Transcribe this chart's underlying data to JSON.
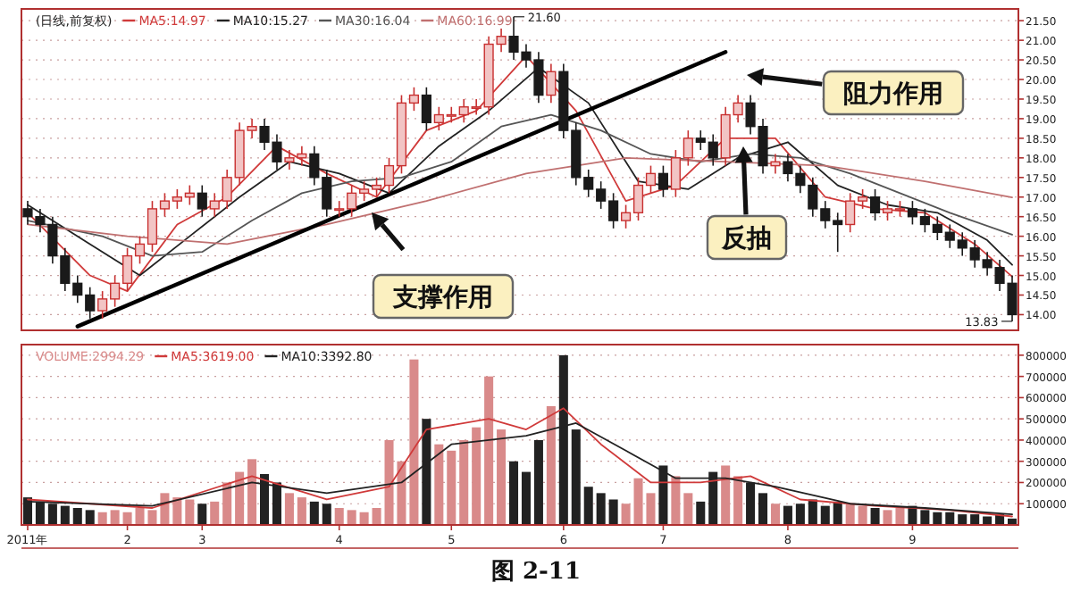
{
  "chart_data": [
    {
      "type": "candlestick",
      "title": "(日线,前复权)",
      "legend": "top left",
      "grid": "y",
      "tick_labels": "y",
      "categories": [
        null,
        null,
        null,
        null,
        null,
        null,
        null,
        null,
        null,
        null,
        null,
        null,
        null,
        null,
        null,
        null,
        null,
        null,
        null,
        null,
        null,
        null,
        null,
        null,
        null,
        null,
        null,
        null,
        null,
        null,
        null,
        null,
        null,
        null,
        null,
        null,
        null,
        null,
        null,
        null,
        null,
        null,
        null,
        null,
        null,
        null,
        null,
        null,
        null,
        null,
        null,
        null,
        null,
        null,
        null,
        null,
        null,
        null,
        null,
        null,
        null,
        null,
        null,
        null,
        null,
        null,
        null,
        null,
        null,
        null,
        null,
        null,
        null,
        null,
        null,
        null,
        null,
        null,
        null,
        null
      ],
      "ohlc": [
        [
          16.7,
          16.9,
          16.3,
          16.5
        ],
        [
          16.5,
          16.7,
          16.1,
          16.3
        ],
        [
          16.3,
          16.5,
          15.3,
          15.5
        ],
        [
          15.5,
          15.7,
          14.6,
          14.8
        ],
        [
          14.8,
          15.0,
          14.3,
          14.5
        ],
        [
          14.5,
          14.7,
          13.9,
          14.1
        ],
        [
          14.1,
          14.6,
          13.9,
          14.4
        ],
        [
          14.4,
          15.0,
          14.2,
          14.8
        ],
        [
          14.8,
          15.7,
          14.6,
          15.5
        ],
        [
          15.5,
          16.0,
          15.3,
          15.8
        ],
        [
          15.8,
          16.9,
          15.6,
          16.7
        ],
        [
          16.7,
          17.1,
          16.5,
          16.9
        ],
        [
          16.9,
          17.2,
          16.7,
          17.0
        ],
        [
          17.0,
          17.3,
          16.8,
          17.1
        ],
        [
          17.1,
          17.3,
          16.5,
          16.7
        ],
        [
          16.7,
          17.1,
          16.5,
          16.9
        ],
        [
          16.9,
          17.7,
          16.7,
          17.5
        ],
        [
          17.5,
          18.9,
          17.3,
          18.7
        ],
        [
          18.7,
          19.0,
          18.5,
          18.8
        ],
        [
          18.8,
          19.0,
          18.2,
          18.4
        ],
        [
          18.4,
          18.6,
          17.7,
          17.9
        ],
        [
          17.9,
          18.2,
          17.7,
          18.0
        ],
        [
          18.0,
          18.3,
          17.8,
          18.1
        ],
        [
          18.1,
          18.3,
          17.3,
          17.5
        ],
        [
          17.5,
          17.7,
          16.5,
          16.7
        ],
        [
          16.7,
          16.9,
          16.5,
          16.7
        ],
        [
          16.7,
          17.3,
          16.5,
          17.1
        ],
        [
          17.1,
          17.4,
          16.9,
          17.2
        ],
        [
          17.2,
          17.5,
          17.0,
          17.3
        ],
        [
          17.3,
          18.0,
          17.1,
          17.8
        ],
        [
          17.8,
          19.6,
          17.6,
          19.4
        ],
        [
          19.4,
          19.8,
          19.2,
          19.6
        ],
        [
          19.6,
          19.8,
          18.7,
          18.9
        ],
        [
          18.9,
          19.3,
          18.7,
          19.1
        ],
        [
          19.1,
          19.3,
          18.9,
          19.1
        ],
        [
          19.1,
          19.5,
          18.9,
          19.3
        ],
        [
          19.3,
          19.5,
          19.1,
          19.3
        ],
        [
          19.3,
          21.1,
          19.1,
          20.9
        ],
        [
          20.9,
          21.3,
          20.7,
          21.1
        ],
        [
          21.1,
          21.6,
          20.5,
          20.7
        ],
        [
          20.7,
          20.9,
          20.3,
          20.5
        ],
        [
          20.5,
          20.7,
          19.4,
          19.6
        ],
        [
          19.6,
          20.4,
          19.4,
          20.2
        ],
        [
          20.2,
          20.4,
          18.5,
          18.7
        ],
        [
          18.7,
          18.9,
          17.3,
          17.5
        ],
        [
          17.5,
          17.7,
          17.0,
          17.2
        ],
        [
          17.2,
          17.4,
          16.7,
          16.9
        ],
        [
          16.9,
          17.1,
          16.2,
          16.4
        ],
        [
          16.4,
          16.8,
          16.2,
          16.6
        ],
        [
          16.6,
          17.5,
          16.4,
          17.3
        ],
        [
          17.3,
          17.8,
          17.1,
          17.6
        ],
        [
          17.6,
          17.8,
          17.0,
          17.2
        ],
        [
          17.2,
          18.2,
          17.0,
          18.0
        ],
        [
          18.0,
          18.7,
          17.8,
          18.5
        ],
        [
          18.5,
          18.7,
          18.2,
          18.4
        ],
        [
          18.4,
          18.6,
          17.8,
          18.0
        ],
        [
          18.0,
          19.3,
          17.8,
          19.1
        ],
        [
          19.1,
          19.6,
          18.9,
          19.4
        ],
        [
          19.4,
          19.6,
          18.6,
          18.8
        ],
        [
          18.8,
          19.0,
          17.6,
          17.8
        ],
        [
          17.8,
          18.1,
          17.6,
          17.9
        ],
        [
          17.9,
          18.1,
          17.4,
          17.6
        ],
        [
          17.6,
          17.8,
          17.1,
          17.3
        ],
        [
          17.3,
          17.5,
          16.5,
          16.7
        ],
        [
          16.7,
          16.9,
          16.2,
          16.4
        ],
        [
          16.4,
          16.6,
          15.6,
          16.3
        ],
        [
          16.3,
          17.1,
          16.1,
          16.9
        ],
        [
          16.9,
          17.2,
          16.7,
          17.0
        ],
        [
          17.0,
          17.2,
          16.4,
          16.6
        ],
        [
          16.6,
          16.9,
          16.4,
          16.7
        ],
        [
          16.7,
          16.9,
          16.5,
          16.7
        ],
        [
          16.7,
          16.9,
          16.3,
          16.5
        ],
        [
          16.5,
          16.7,
          16.1,
          16.3
        ],
        [
          16.3,
          16.5,
          15.9,
          16.1
        ],
        [
          16.1,
          16.3,
          15.7,
          15.9
        ],
        [
          15.9,
          16.1,
          15.5,
          15.7
        ],
        [
          15.7,
          15.9,
          15.2,
          15.4
        ],
        [
          15.4,
          15.6,
          15.0,
          15.2
        ],
        [
          15.2,
          15.4,
          14.6,
          14.8
        ],
        [
          14.8,
          15.0,
          13.83,
          14.0
        ]
      ],
      "series": [
        {
          "name": "MA5:14.97",
          "type": "line",
          "color": "#d03a3a",
          "values": [
            16.6,
            null,
            null,
            null,
            null,
            15.0,
            null,
            null,
            14.6,
            null,
            null,
            null,
            16.3,
            null,
            null,
            null,
            17.0,
            null,
            null,
            null,
            18.3,
            null,
            null,
            null,
            17.6,
            null,
            null,
            null,
            17.0,
            null,
            null,
            null,
            18.7,
            null,
            null,
            null,
            19.2,
            null,
            null,
            null,
            20.6,
            null,
            null,
            null,
            19.2,
            null,
            null,
            null,
            16.9,
            null,
            null,
            null,
            17.3,
            null,
            null,
            null,
            18.5,
            null,
            null,
            null,
            18.5,
            null,
            null,
            null,
            17.0,
            null,
            null,
            null,
            16.7,
            null,
            null,
            null,
            16.6,
            null,
            null,
            null,
            15.8,
            null,
            null,
            14.97
          ]
        },
        {
          "name": "MA10:15.27",
          "type": "line",
          "color": "#222222",
          "values": [
            16.8,
            null,
            null,
            null,
            null,
            15.8,
            null,
            null,
            null,
            15.0,
            null,
            null,
            null,
            16.0,
            null,
            null,
            null,
            17.0,
            null,
            null,
            null,
            17.9,
            null,
            null,
            null,
            17.6,
            null,
            null,
            null,
            17.1,
            null,
            null,
            null,
            18.3,
            null,
            null,
            null,
            19.2,
            null,
            null,
            null,
            20.3,
            null,
            null,
            null,
            19.4,
            null,
            null,
            null,
            17.4,
            null,
            null,
            null,
            17.2,
            null,
            null,
            null,
            18.0,
            null,
            null,
            null,
            18.4,
            null,
            null,
            null,
            17.3,
            null,
            null,
            null,
            16.8,
            null,
            null,
            null,
            16.6,
            null,
            null,
            null,
            15.9,
            null,
            15.27
          ]
        },
        {
          "name": "MA30:16.04",
          "type": "line",
          "color": "#555555",
          "values": [
            16.4,
            null,
            null,
            null,
            null,
            null,
            16.0,
            null,
            null,
            null,
            15.5,
            null,
            null,
            null,
            15.6,
            null,
            null,
            null,
            16.4,
            null,
            null,
            null,
            17.1,
            null,
            null,
            null,
            17.4,
            null,
            null,
            null,
            17.5,
            null,
            null,
            null,
            17.9,
            null,
            null,
            null,
            18.8,
            null,
            null,
            null,
            19.1,
            null,
            null,
            null,
            18.7,
            null,
            null,
            null,
            18.1,
            null,
            null,
            null,
            17.9,
            null,
            null,
            null,
            18.1,
            null,
            null,
            null,
            18.0,
            null,
            null,
            null,
            17.6,
            null,
            null,
            null,
            17.1,
            null,
            null,
            null,
            16.6,
            null,
            null,
            null,
            null,
            16.04
          ]
        },
        {
          "name": "MA60:16.99",
          "type": "line",
          "color": "#c07070",
          "values": [
            16.3,
            null,
            null,
            null,
            null,
            null,
            null,
            null,
            16.0,
            null,
            null,
            null,
            null,
            null,
            null,
            null,
            15.8,
            null,
            null,
            null,
            null,
            null,
            null,
            null,
            16.3,
            null,
            null,
            null,
            null,
            null,
            null,
            null,
            16.9,
            null,
            null,
            null,
            null,
            null,
            null,
            null,
            17.6,
            null,
            null,
            null,
            null,
            null,
            null,
            null,
            18.0,
            null,
            null,
            null,
            null,
            null,
            null,
            null,
            17.9,
            null,
            null,
            null,
            null,
            null,
            null,
            null,
            17.8,
            null,
            null,
            null,
            null,
            null,
            null,
            null,
            17.4,
            null,
            null,
            null,
            null,
            null,
            null,
            16.99
          ]
        },
        {
          "type": "line",
          "color": "#000000",
          "values": [
            null,
            null,
            null,
            null,
            13.7,
            null,
            null,
            null,
            null,
            null,
            null,
            null,
            null,
            null,
            null,
            null,
            null,
            null,
            null,
            null,
            null,
            null,
            null,
            null,
            null,
            null,
            null,
            null,
            null,
            null,
            null,
            null,
            null,
            null,
            null,
            null,
            null,
            null,
            null,
            null,
            null,
            null,
            null,
            null,
            null,
            null,
            null,
            null,
            null,
            null,
            null,
            null,
            null,
            null,
            null,
            null,
            20.7,
            null,
            null,
            null,
            null,
            null,
            null,
            null,
            null,
            null,
            null,
            null,
            null,
            null,
            null,
            null,
            null,
            null,
            null,
            null,
            null,
            null,
            null,
            null
          ]
        }
      ],
      "ylim": [
        13.6,
        21.8
      ],
      "yticks": [
        {
          "value": 14,
          "label": "14.00"
        },
        {
          "value": 14.5,
          "label": "14.50"
        },
        {
          "value": 15,
          "label": "15.00"
        },
        {
          "value": 15.5,
          "label": "15.50"
        },
        {
          "value": 16,
          "label": "16.00"
        },
        {
          "value": 16.5,
          "label": "16.50"
        },
        {
          "value": 17,
          "label": "17.00"
        },
        {
          "value": 17.5,
          "label": "17.50"
        },
        {
          "value": 18,
          "label": "18.00"
        },
        {
          "value": 18.5,
          "label": "18.50"
        },
        {
          "value": 19,
          "label": "19.00"
        },
        {
          "value": 19.5,
          "label": "19.50"
        },
        {
          "value": 20,
          "label": "20.00"
        },
        {
          "value": 20.5,
          "label": "20.50"
        },
        {
          "value": 21,
          "label": "21.00"
        },
        {
          "value": 21.5,
          "label": "21.50"
        }
      ],
      "annotations": [
        "21.60",
        "13.83",
        "支撑作用",
        "阻力作用",
        "反抽"
      ]
    },
    {
      "type": "bar",
      "legend": "top left",
      "grid": "y",
      "categories": [
        "2011年",
        null,
        null,
        null,
        null,
        null,
        null,
        null,
        "2",
        null,
        null,
        null,
        null,
        null,
        "3",
        null,
        null,
        null,
        null,
        null,
        null,
        null,
        null,
        null,
        null,
        "4",
        null,
        null,
        null,
        null,
        null,
        null,
        null,
        null,
        "5",
        null,
        null,
        null,
        null,
        null,
        null,
        null,
        null,
        "6",
        null,
        null,
        null,
        null,
        null,
        null,
        null,
        "7",
        null,
        null,
        null,
        null,
        null,
        null,
        null,
        null,
        null,
        "8",
        null,
        null,
        null,
        null,
        null,
        null,
        null,
        null,
        null,
        "9",
        null,
        null,
        null,
        null,
        null,
        null,
        null,
        null
      ],
      "series": [
        {
          "name": "VOLUME:2994.29",
          "type": "bar",
          "color": "#d98a8a",
          "values": [
            130000,
            110000,
            100000,
            90000,
            80000,
            70000,
            60000,
            70000,
            60000,
            80000,
            70000,
            150000,
            130000,
            120000,
            100000,
            110000,
            200000,
            250000,
            310000,
            240000,
            200000,
            150000,
            130000,
            110000,
            100000,
            80000,
            70000,
            60000,
            80000,
            400000,
            300000,
            780000,
            500000,
            380000,
            350000,
            400000,
            460000,
            700000,
            450000,
            300000,
            250000,
            400000,
            560000,
            800000,
            450000,
            180000,
            150000,
            120000,
            100000,
            220000,
            150000,
            280000,
            230000,
            150000,
            110000,
            250000,
            280000,
            230000,
            200000,
            150000,
            100000,
            90000,
            100000,
            120000,
            90000,
            110000,
            100000,
            90000,
            80000,
            70000,
            80000,
            90000,
            70000,
            60000,
            60000,
            50000,
            50000,
            40000,
            50000,
            30000
          ],
          "colors": [
            "#222222",
            "#222222",
            "#222222",
            "#222222",
            "#222222",
            "#222222",
            "#d98a8a",
            "#d98a8a",
            "#d98a8a",
            "#d98a8a",
            "#d98a8a",
            "#d98a8a",
            "#d98a8a",
            "#d98a8a",
            "#222222",
            "#d98a8a",
            "#d98a8a",
            "#d98a8a",
            "#d98a8a",
            "#222222",
            "#222222",
            "#d98a8a",
            "#d98a8a",
            "#222222",
            "#222222",
            "#d98a8a",
            "#d98a8a",
            "#d98a8a",
            "#d98a8a",
            "#d98a8a",
            "#d98a8a",
            "#d98a8a",
            "#222222",
            "#d98a8a",
            "#d98a8a",
            "#d98a8a",
            "#d98a8a",
            "#d98a8a",
            "#d98a8a",
            "#222222",
            "#222222",
            "#222222",
            "#d98a8a",
            "#222222",
            "#222222",
            "#222222",
            "#222222",
            "#222222",
            "#d98a8a",
            "#d98a8a",
            "#d98a8a",
            "#222222",
            "#d98a8a",
            "#d98a8a",
            "#222222",
            "#222222",
            "#d98a8a",
            "#d98a8a",
            "#222222",
            "#222222",
            "#d98a8a",
            "#222222",
            "#222222",
            "#222222",
            "#222222",
            "#222222",
            "#d98a8a",
            "#d98a8a",
            "#222222",
            "#d98a8a",
            "#d98a8a",
            "#222222",
            "#222222",
            "#222222",
            "#222222",
            "#222222",
            "#222222",
            "#222222",
            "#222222",
            "#222222"
          ]
        },
        {
          "name": "MA5:3619.00",
          "type": "line",
          "color": "#d03a3a",
          "values": [
            120000,
            null,
            null,
            null,
            null,
            null,
            null,
            null,
            null,
            null,
            80000,
            null,
            null,
            null,
            null,
            null,
            null,
            null,
            230000,
            null,
            null,
            null,
            null,
            null,
            120000,
            null,
            null,
            null,
            null,
            180000,
            null,
            null,
            450000,
            null,
            null,
            null,
            null,
            500000,
            null,
            null,
            450000,
            null,
            null,
            550000,
            null,
            null,
            380000,
            null,
            null,
            null,
            200000,
            null,
            null,
            null,
            200000,
            null,
            null,
            null,
            230000,
            null,
            null,
            null,
            120000,
            null,
            null,
            null,
            null,
            null,
            90000,
            null,
            null,
            null,
            null,
            null,
            70000,
            null,
            null,
            null,
            null,
            40000
          ]
        },
        {
          "name": "MA10:3392.80",
          "type": "line",
          "color": "#222222",
          "values": [
            110000,
            null,
            null,
            null,
            null,
            null,
            null,
            null,
            null,
            null,
            90000,
            null,
            null,
            null,
            null,
            null,
            null,
            null,
            200000,
            null,
            null,
            null,
            null,
            null,
            150000,
            null,
            null,
            null,
            null,
            null,
            200000,
            null,
            null,
            null,
            380000,
            null,
            null,
            null,
            null,
            null,
            420000,
            null,
            null,
            null,
            480000,
            null,
            null,
            null,
            350000,
            null,
            null,
            null,
            220000,
            null,
            null,
            null,
            220000,
            null,
            null,
            null,
            180000,
            null,
            null,
            null,
            null,
            null,
            100000,
            null,
            null,
            null,
            null,
            null,
            80000,
            null,
            null,
            null,
            null,
            null,
            null,
            50000
          ]
        }
      ],
      "ylim": [
        0,
        850000
      ],
      "yticks": [
        100000,
        200000,
        300000,
        400000,
        500000,
        600000,
        700000,
        800000
      ],
      "annotations": [
        "图 2-11"
      ]
    }
  ]
}
